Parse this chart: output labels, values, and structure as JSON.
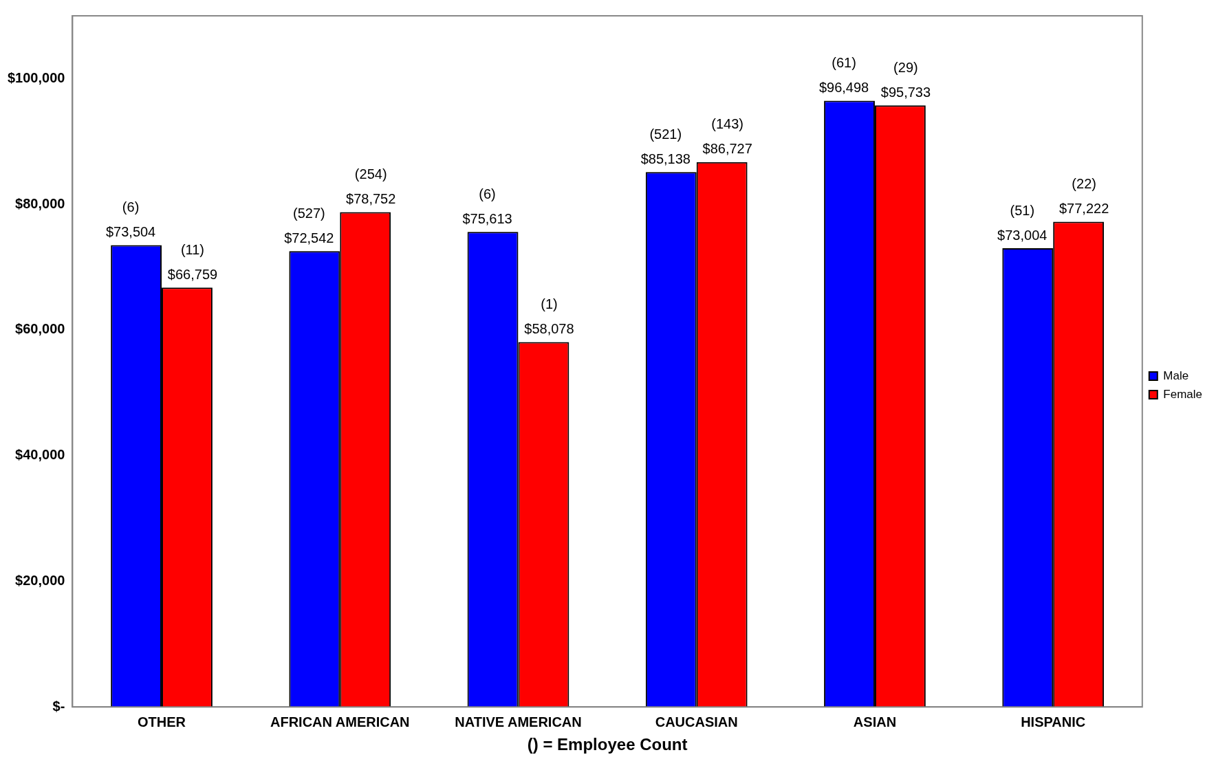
{
  "chart_data": {
    "type": "bar",
    "xlabel": "() = Employee Count",
    "categories": [
      "OTHER",
      "AFRICAN AMERICAN",
      "NATIVE AMERICAN",
      "CAUCASIAN",
      "ASIAN",
      "HISPANIC"
    ],
    "series": [
      {
        "name": "Male",
        "color": "#0000ff",
        "values": [
          73504,
          72542,
          75613,
          85138,
          96498,
          73004
        ],
        "value_labels": [
          "(6)\n$73,504",
          "(527)\n$72,542",
          "(6)\n$75,613",
          "(521)\n$85,138",
          "(61)\n$96,498",
          "(51)\n$73,004"
        ]
      },
      {
        "name": "Female",
        "color": "#ff0000",
        "values": [
          66759,
          78752,
          58078,
          86727,
          95733,
          77222
        ],
        "value_labels": [
          "(11)\n$66,759",
          "(254)\n$78,752",
          "(1)\n$58,078",
          "(143)\n$86,727",
          "(29)\n$95,733",
          "(22)\n$77,222"
        ]
      }
    ],
    "ylim": [
      0,
      110000
    ],
    "yticks": [
      {
        "value": 0,
        "label": "$-"
      },
      {
        "value": 20000,
        "label": "$20,000"
      },
      {
        "value": 40000,
        "label": "$40,000"
      },
      {
        "value": 60000,
        "label": "$60,000"
      },
      {
        "value": 80000,
        "label": "$80,000"
      },
      {
        "value": 100000,
        "label": "$100,000"
      }
    ],
    "grid": false,
    "legend": "right"
  }
}
